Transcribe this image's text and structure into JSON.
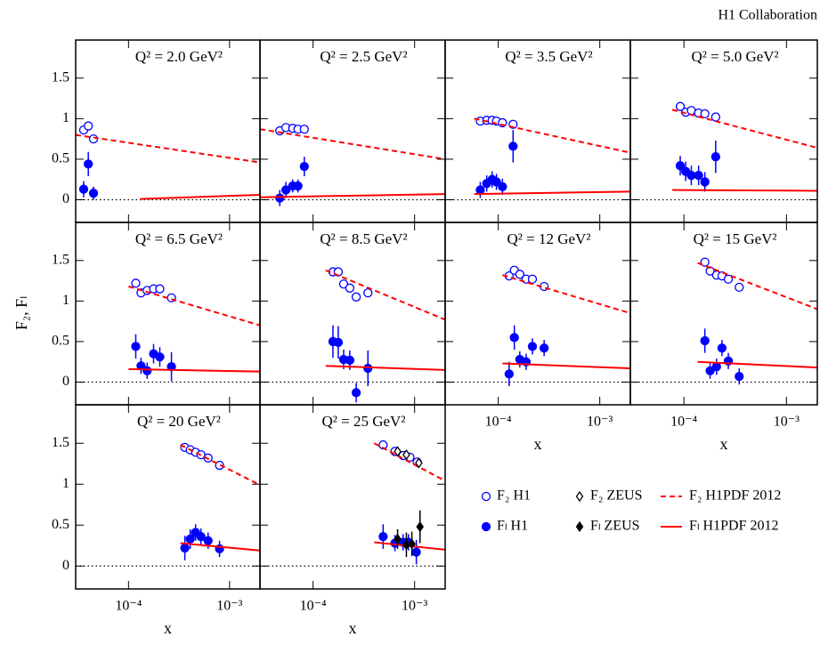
{
  "header": "H1 Collaboration",
  "y_label": "F₂, Fₗ",
  "chart_data": [
    {
      "type": "scatter",
      "title": "Q² = 2.0 GeV²",
      "log_x": true,
      "zero_line": true,
      "xlim": [
        3e-05,
        0.002
      ],
      "ylim": [
        -0.28,
        1.97
      ],
      "xticks": [
        0.0001,
        0.001
      ],
      "yticks": [
        0,
        0.5,
        1,
        1.5
      ],
      "ytick_labels": true,
      "series": [
        {
          "name": "F₂ H1",
          "color": "#0000ff",
          "marker": "open-circle",
          "x": [
            3.6e-05,
            4e-05,
            4.5e-05
          ],
          "values": [
            0.86,
            0.91,
            0.75
          ]
        },
        {
          "name": "Fₗ H1",
          "color": "#0000ff",
          "marker": "filled-circle",
          "x": [
            3.6e-05,
            4e-05,
            4.5e-05
          ],
          "values": [
            0.13,
            0.44,
            0.08
          ],
          "errors": [
            0.1,
            0.15,
            0.08
          ]
        },
        {
          "name": "F₂ H1PDF 2012",
          "color": "#ff0000",
          "line": "dashed",
          "x": [
            3e-05,
            0.002
          ],
          "values": [
            0.8,
            0.46
          ]
        },
        {
          "name": "Fₗ H1PDF 2012",
          "color": "#ff0000",
          "line": "solid",
          "x": [
            0.00013,
            0.002
          ],
          "values": [
            0.01,
            0.06
          ]
        }
      ]
    },
    {
      "type": "scatter",
      "title": "Q² = 2.5 GeV²",
      "log_x": true,
      "zero_line": true,
      "xlim": [
        3e-05,
        0.002
      ],
      "ylim": [
        -0.28,
        1.97
      ],
      "xticks": [
        0.0001,
        0.001
      ],
      "yticks": [
        0,
        0.5,
        1,
        1.5
      ],
      "ytick_labels": false,
      "series": [
        {
          "name": "F₂ H1",
          "color": "#0000ff",
          "marker": "open-circle",
          "x": [
            4.7e-05,
            5.4e-05,
            6.3e-05,
            7.1e-05,
            8.2e-05
          ],
          "values": [
            0.85,
            0.89,
            0.88,
            0.87,
            0.87
          ]
        },
        {
          "name": "Fₗ H1",
          "color": "#0000ff",
          "marker": "filled-circle",
          "x": [
            4.7e-05,
            5.4e-05,
            6.3e-05,
            7.1e-05,
            8.2e-05
          ],
          "values": [
            0.02,
            0.12,
            0.17,
            0.17,
            0.41
          ],
          "errors": [
            0.1,
            0.1,
            0.08,
            0.08,
            0.12
          ]
        },
        {
          "name": "F₂ H1PDF 2012",
          "color": "#ff0000",
          "line": "dashed",
          "x": [
            3e-05,
            0.002
          ],
          "values": [
            0.87,
            0.5
          ]
        },
        {
          "name": "Fₗ H1PDF 2012",
          "color": "#ff0000",
          "line": "solid",
          "x": [
            3e-05,
            0.002
          ],
          "values": [
            0.03,
            0.07
          ]
        }
      ]
    },
    {
      "type": "scatter",
      "title": "Q² = 3.5 GeV²",
      "log_x": true,
      "zero_line": true,
      "xlim": [
        3e-05,
        0.002
      ],
      "ylim": [
        -0.28,
        1.97
      ],
      "xticks": [
        0.0001,
        0.001
      ],
      "yticks": [
        0,
        0.5,
        1,
        1.5
      ],
      "ytick_labels": false,
      "series": [
        {
          "name": "F₂ H1",
          "color": "#0000ff",
          "marker": "open-circle",
          "x": [
            6.65e-05,
            7.7e-05,
            8.7e-05,
            9.6e-05,
            0.00011,
            0.00014
          ],
          "values": [
            0.97,
            0.98,
            0.98,
            0.97,
            0.95,
            0.93
          ]
        },
        {
          "name": "Fₗ H1",
          "color": "#0000ff",
          "marker": "filled-circle",
          "x": [
            6.65e-05,
            7.7e-05,
            8.7e-05,
            9.6e-05,
            0.00011,
            0.00014
          ],
          "values": [
            0.12,
            0.2,
            0.25,
            0.22,
            0.16,
            0.66
          ],
          "errors": [
            0.1,
            0.1,
            0.1,
            0.1,
            0.1,
            0.2
          ]
        },
        {
          "name": "F₂ H1PDF 2012",
          "color": "#ff0000",
          "line": "dashed",
          "x": [
            5.8e-05,
            0.002
          ],
          "values": [
            1.0,
            0.58
          ]
        },
        {
          "name": "Fₗ H1PDF 2012",
          "color": "#ff0000",
          "line": "solid",
          "x": [
            5.8e-05,
            0.002
          ],
          "values": [
            0.07,
            0.1
          ]
        }
      ]
    },
    {
      "type": "scatter",
      "title": "Q² = 5.0 GeV²",
      "log_x": true,
      "zero_line": true,
      "xlim": [
        3e-05,
        0.002
      ],
      "ylim": [
        -0.28,
        1.97
      ],
      "xticks": [
        0.0001,
        0.001
      ],
      "yticks": [
        0,
        0.5,
        1,
        1.5
      ],
      "ytick_labels": false,
      "series": [
        {
          "name": "F₂ H1",
          "color": "#0000ff",
          "marker": "open-circle",
          "x": [
            9.2e-05,
            0.000104,
            0.000118,
            0.000139,
            0.00016,
            0.000204
          ],
          "values": [
            1.15,
            1.08,
            1.1,
            1.07,
            1.06,
            1.02
          ]
        },
        {
          "name": "Fₗ H1",
          "color": "#0000ff",
          "marker": "filled-circle",
          "x": [
            9.2e-05,
            0.000104,
            0.000118,
            0.000139,
            0.00016,
            0.000204
          ],
          "values": [
            0.42,
            0.35,
            0.3,
            0.3,
            0.22,
            0.53
          ],
          "errors": [
            0.12,
            0.12,
            0.12,
            0.12,
            0.12,
            0.2
          ]
        },
        {
          "name": "F₂ H1PDF 2012",
          "color": "#ff0000",
          "line": "dashed",
          "x": [
            7.7e-05,
            0.002
          ],
          "values": [
            1.11,
            0.64
          ]
        },
        {
          "name": "Fₗ H1PDF 2012",
          "color": "#ff0000",
          "line": "solid",
          "x": [
            7.7e-05,
            0.002
          ],
          "values": [
            0.12,
            0.11
          ]
        }
      ]
    },
    {
      "type": "scatter",
      "title": "Q² = 6.5 GeV²",
      "log_x": true,
      "zero_line": true,
      "xlim": [
        3e-05,
        0.002
      ],
      "ylim": [
        -0.28,
        1.97
      ],
      "xticks": [
        0.0001,
        0.001
      ],
      "yticks": [
        0,
        0.5,
        1,
        1.5
      ],
      "ytick_labels": true,
      "series": [
        {
          "name": "F₂ H1",
          "color": "#0000ff",
          "marker": "open-circle",
          "x": [
            0.000118,
            0.000133,
            0.000153,
            0.000177,
            0.000204,
            0.000266
          ],
          "values": [
            1.22,
            1.1,
            1.13,
            1.15,
            1.15,
            1.04
          ]
        },
        {
          "name": "Fₗ H1",
          "color": "#0000ff",
          "marker": "filled-circle",
          "x": [
            0.000118,
            0.000133,
            0.000153,
            0.000177,
            0.000204,
            0.000266
          ],
          "values": [
            0.44,
            0.2,
            0.14,
            0.35,
            0.31,
            0.19
          ],
          "errors": [
            0.15,
            0.1,
            0.1,
            0.12,
            0.12,
            0.18
          ]
        },
        {
          "name": "F₂ H1PDF 2012",
          "color": "#ff0000",
          "line": "dashed",
          "x": [
            0.0001,
            0.002
          ],
          "values": [
            1.18,
            0.7
          ]
        },
        {
          "name": "Fₗ H1PDF 2012",
          "color": "#ff0000",
          "line": "solid",
          "x": [
            0.0001,
            0.002
          ],
          "values": [
            0.16,
            0.13
          ]
        }
      ]
    },
    {
      "type": "scatter",
      "title": "Q² = 8.5 GeV²",
      "log_x": true,
      "zero_line": true,
      "xlim": [
        3e-05,
        0.002
      ],
      "ylim": [
        -0.28,
        1.97
      ],
      "xticks": [
        0.0001,
        0.001
      ],
      "yticks": [
        0,
        0.5,
        1,
        1.5
      ],
      "ytick_labels": false,
      "series": [
        {
          "name": "F₂ H1",
          "color": "#0000ff",
          "marker": "open-circle",
          "x": [
            0.000157,
            0.000177,
            0.0002,
            0.00023,
            0.000266,
            0.000347
          ],
          "values": [
            1.36,
            1.36,
            1.21,
            1.16,
            1.05,
            1.1
          ]
        },
        {
          "name": "Fₗ H1",
          "color": "#0000ff",
          "marker": "filled-circle",
          "x": [
            0.000157,
            0.000177,
            0.0002,
            0.00023,
            0.000266,
            0.000347
          ],
          "values": [
            0.5,
            0.49,
            0.28,
            0.27,
            -0.13,
            0.17
          ],
          "errors": [
            0.2,
            0.2,
            0.12,
            0.12,
            0.12,
            0.22
          ]
        },
        {
          "name": "F₂ H1PDF 2012",
          "color": "#ff0000",
          "line": "dashed",
          "x": [
            0.000133,
            0.002
          ],
          "values": [
            1.38,
            0.77
          ]
        },
        {
          "name": "Fₗ H1PDF 2012",
          "color": "#ff0000",
          "line": "solid",
          "x": [
            0.000133,
            0.002
          ],
          "values": [
            0.2,
            0.15
          ]
        }
      ]
    },
    {
      "type": "scatter",
      "title": "Q² = 12 GeV²",
      "log_x": true,
      "zero_line": true,
      "xlim": [
        3e-05,
        0.002
      ],
      "ylim": [
        -0.28,
        1.97
      ],
      "xticks": [
        {
          "value": 0.0001,
          "label": "10⁻⁴"
        },
        {
          "value": 0.001,
          "label": "10⁻³"
        }
      ],
      "yticks": [
        0,
        0.5,
        1,
        1.5
      ],
      "ytick_labels": false,
      "x_label": "x",
      "series": [
        {
          "name": "F₂ H1",
          "color": "#0000ff",
          "marker": "open-circle",
          "x": [
            0.000128,
            0.000144,
            0.000163,
            0.000188,
            0.000217,
            0.000283
          ],
          "values": [
            1.31,
            1.38,
            1.33,
            1.27,
            1.27,
            1.18
          ]
        },
        {
          "name": "Fₗ H1",
          "color": "#0000ff",
          "marker": "filled-circle",
          "x": [
            0.000128,
            0.000144,
            0.000163,
            0.000188,
            0.000217,
            0.000283
          ],
          "values": [
            0.1,
            0.55,
            0.28,
            0.25,
            0.44,
            0.42
          ],
          "errors": [
            0.15,
            0.15,
            0.1,
            0.1,
            0.1,
            0.1
          ]
        },
        {
          "name": "F₂ H1PDF 2012",
          "color": "#ff0000",
          "line": "dashed",
          "x": [
            0.00011,
            0.002
          ],
          "values": [
            1.32,
            0.85
          ]
        },
        {
          "name": "Fₗ H1PDF 2012",
          "color": "#ff0000",
          "line": "solid",
          "x": [
            0.00011,
            0.002
          ],
          "values": [
            0.23,
            0.17
          ]
        }
      ]
    },
    {
      "type": "scatter",
      "title": "Q² = 15 GeV²",
      "log_x": true,
      "zero_line": true,
      "xlim": [
        3e-05,
        0.002
      ],
      "ylim": [
        -0.28,
        1.97
      ],
      "xticks": [
        {
          "value": 0.0001,
          "label": "10⁻⁴"
        },
        {
          "value": 0.001,
          "label": "10⁻³"
        }
      ],
      "yticks": [
        0,
        0.5,
        1,
        1.5
      ],
      "ytick_labels": false,
      "x_label": "x",
      "series": [
        {
          "name": "F₂ H1",
          "color": "#0000ff",
          "marker": "open-circle",
          "x": [
            0.00016,
            0.00018,
            0.000208,
            0.000235,
            0.000271,
            0.000346
          ],
          "values": [
            1.48,
            1.37,
            1.32,
            1.31,
            1.27,
            1.17
          ]
        },
        {
          "name": "Fₗ H1",
          "color": "#0000ff",
          "marker": "filled-circle",
          "x": [
            0.00016,
            0.00018,
            0.000208,
            0.000235,
            0.000271,
            0.000346
          ],
          "values": [
            0.51,
            0.14,
            0.19,
            0.42,
            0.26,
            0.07
          ],
          "errors": [
            0.15,
            0.1,
            0.1,
            0.1,
            0.1,
            0.1
          ]
        },
        {
          "name": "F₂ H1PDF 2012",
          "color": "#ff0000",
          "line": "dashed",
          "x": [
            0.000136,
            0.002
          ],
          "values": [
            1.47,
            0.9
          ]
        },
        {
          "name": "Fₗ H1PDF 2012",
          "color": "#ff0000",
          "line": "solid",
          "x": [
            0.000136,
            0.002
          ],
          "values": [
            0.25,
            0.18
          ]
        }
      ]
    },
    {
      "type": "scatter",
      "title": "Q² = 20 GeV²",
      "log_x": true,
      "zero_line": true,
      "xlim": [
        3e-05,
        0.002
      ],
      "ylim": [
        -0.28,
        1.97
      ],
      "xticks": [
        {
          "value": 0.0001,
          "label": "10⁻⁴"
        },
        {
          "value": 0.001,
          "label": "10⁻³"
        }
      ],
      "yticks": [
        0,
        0.5,
        1,
        1.5
      ],
      "ytick_labels": true,
      "x_label": "x",
      "series": [
        {
          "name": "F₂ H1",
          "color": "#0000ff",
          "marker": "open-circle",
          "x": [
            0.000361,
            0.000408,
            0.000461,
            0.000521,
            0.000613,
            0.000796
          ],
          "values": [
            1.45,
            1.42,
            1.39,
            1.36,
            1.32,
            1.23
          ]
        },
        {
          "name": "Fₗ H1",
          "color": "#0000ff",
          "marker": "filled-circle",
          "x": [
            0.000361,
            0.000408,
            0.000461,
            0.000521,
            0.000613,
            0.000796
          ],
          "values": [
            0.22,
            0.33,
            0.41,
            0.36,
            0.31,
            0.21
          ],
          "errors": [
            0.15,
            0.12,
            0.1,
            0.1,
            0.1,
            0.1
          ]
        },
        {
          "name": "F₂ H1PDF 2012",
          "color": "#ff0000",
          "line": "dashed",
          "x": [
            0.000326,
            0.002
          ],
          "values": [
            1.48,
            0.99
          ]
        },
        {
          "name": "Fₗ H1PDF 2012",
          "color": "#ff0000",
          "line": "solid",
          "x": [
            0.000326,
            0.002
          ],
          "values": [
            0.28,
            0.19
          ]
        }
      ]
    },
    {
      "type": "scatter",
      "title": "Q² = 25 GeV²",
      "log_x": true,
      "zero_line": true,
      "legend": true,
      "xlim": [
        3e-05,
        0.002
      ],
      "ylim": [
        -0.28,
        1.97
      ],
      "xticks": [
        {
          "value": 0.0001,
          "label": "10⁻⁴"
        },
        {
          "value": 0.001,
          "label": "10⁻³"
        }
      ],
      "yticks": [
        0,
        0.5,
        1,
        1.5
      ],
      "ytick_labels": false,
      "x_label": "x",
      "series": [
        {
          "name": "F₂ H1",
          "color": "#0000ff",
          "marker": "open-circle",
          "x": [
            0.00049,
            0.00064,
            0.00077,
            0.0009,
            0.00106
          ],
          "values": [
            1.48,
            1.4,
            1.35,
            1.33,
            1.27
          ]
        },
        {
          "name": "Fₗ H1",
          "color": "#0000ff",
          "marker": "filled-circle",
          "x": [
            0.00049,
            0.00064,
            0.00077,
            0.00087,
            0.00104
          ],
          "values": [
            0.36,
            0.28,
            0.29,
            0.29,
            0.17
          ],
          "errors": [
            0.15,
            0.1,
            0.1,
            0.1,
            0.15
          ]
        },
        {
          "name": "F₂ H1PDF 2012",
          "color": "#ff0000",
          "line": "dashed",
          "x": [
            0.0004,
            0.002
          ],
          "values": [
            1.5,
            1.04
          ]
        },
        {
          "name": "Fₗ H1PDF 2012",
          "color": "#ff0000",
          "line": "solid",
          "x": [
            0.0004,
            0.002
          ],
          "values": [
            0.29,
            0.2
          ]
        },
        {
          "name": "F₂ ZEUS",
          "color": "#000000",
          "marker": "open-diamond",
          "x": [
            0.00068,
            0.00083,
            0.0011
          ],
          "values": [
            1.4,
            1.36,
            1.26
          ]
        },
        {
          "name": "Fₗ ZEUS",
          "color": "#000000",
          "marker": "filled-diamond",
          "x": [
            0.00068,
            0.00083,
            0.00094,
            0.00113
          ],
          "values": [
            0.33,
            0.26,
            0.27,
            0.48
          ],
          "errors": [
            0.12,
            0.15,
            0.15,
            0.2
          ]
        }
      ]
    }
  ]
}
